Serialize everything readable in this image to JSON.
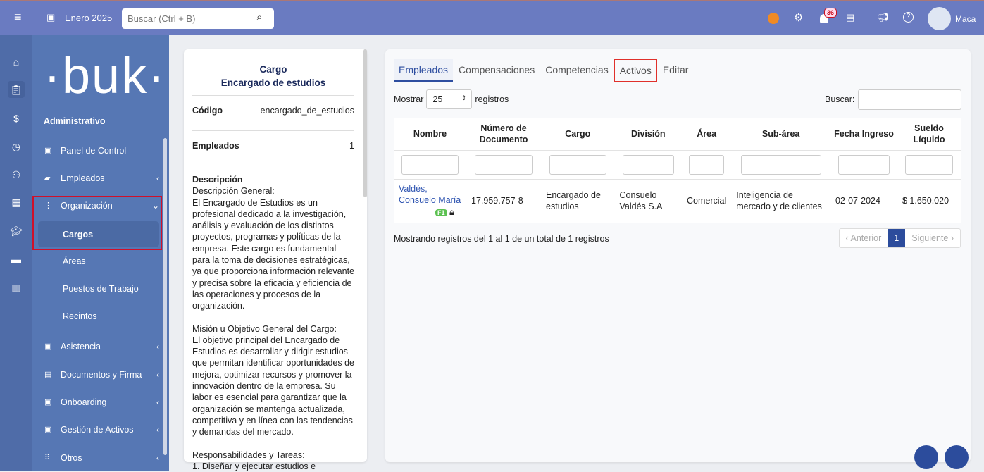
{
  "header": {
    "period": "Enero 2025",
    "search_placeholder": "Buscar (Ctrl + B)",
    "notifications": "36",
    "user": "Maca"
  },
  "sidebar": {
    "section": "Administrativo",
    "logo": "·buk·",
    "items": [
      {
        "label": "Panel de Control",
        "icon": "chart-icon"
      },
      {
        "label": "Empleados",
        "icon": "briefcase-icon"
      },
      {
        "label": "Organización",
        "icon": "org-icon"
      },
      {
        "label": "Cargos"
      },
      {
        "label": "Áreas"
      },
      {
        "label": "Puestos de Trabajo"
      },
      {
        "label": "Recintos"
      },
      {
        "label": "Asistencia",
        "icon": "calendar-icon"
      },
      {
        "label": "Documentos y Firma",
        "icon": "documents-icon"
      },
      {
        "label": "Onboarding",
        "icon": "onboarding-icon"
      },
      {
        "label": "Gestión de Activos",
        "icon": "assets-icon"
      },
      {
        "label": "Otros",
        "icon": "grid-icon"
      }
    ]
  },
  "cargo": {
    "heading": "Cargo",
    "name": "Encargado de estudios",
    "codigo_label": "Código",
    "codigo": "encargado_de_estudios",
    "empleados_label": "Empleados",
    "empleados": "1",
    "descripcion_label": "Descripción",
    "p1": "Descripción General:\nEl Encargado de Estudios es un profesional dedicado a la investigación, análisis y evaluación de los distintos proyectos, programas y políticas de la empresa. Este cargo es fundamental para la toma de decisiones estratégicas, ya que proporciona información relevante y precisa sobre la eficacia y eficiencia de las operaciones y procesos de la organización.",
    "p2": "Misión u Objetivo General del Cargo:\nEl objetivo principal del Encargado de Estudios es desarrollar y dirigir estudios que permitan identificar oportunidades de mejora, optimizar recursos y promover la innovación dentro de la empresa. Su labor es esencial para garantizar que la organización se mantenga actualizada, competitiva y en línea con las tendencias y demandas del mercado.",
    "p3": "Responsabilidades y Tareas:\n1. Diseñar y ejecutar estudios e"
  },
  "tabs": [
    "Empleados",
    "Compensaciones",
    "Competencias",
    "Activos",
    "Editar"
  ],
  "table": {
    "show_label": "Mostrar",
    "show_value": "25",
    "records_label": "registros",
    "search_label": "Buscar:",
    "headers": [
      "Nombre",
      "Número de Documento",
      "Cargo",
      "División",
      "Área",
      "Sub-área",
      "Fecha Ingreso",
      "Sueldo Líquido"
    ],
    "row": [
      "Valdés, Consuelo María",
      "17.959.757-8",
      "Encargado de estudios",
      "Consuelo Valdés S.A",
      "Comercial",
      "Inteligencia de mercado y de clientes",
      "02-07-2024",
      "$ 1.650.020"
    ],
    "badge": "F1",
    "info": "Mostrando registros del 1 al 1 de un total de 1 registros",
    "prev": "‹ Anterior",
    "page": "1",
    "next": "Siguiente ›"
  }
}
